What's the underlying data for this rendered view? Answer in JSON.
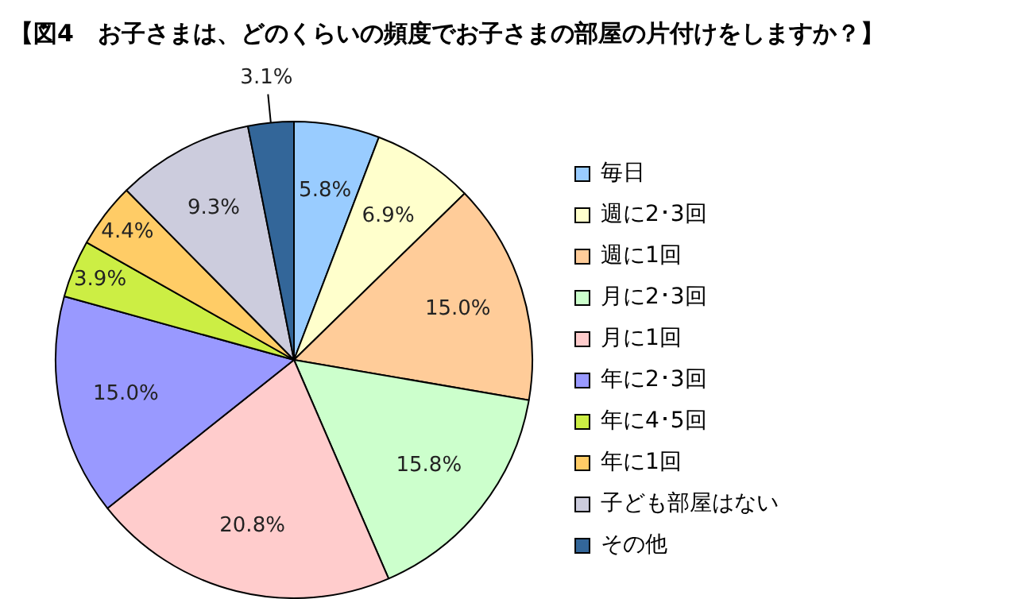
{
  "chart_data": {
    "type": "pie",
    "title": "【図4　お子さまは、どのくらいの頻度でお子さまの部屋の片付けをしますか？】",
    "categories": [
      "毎日",
      "週に2･3回",
      "週に1回",
      "月に2･3回",
      "月に1回",
      "年に2･3回",
      "年に4･5回",
      "年に1回",
      "子ども部屋はない",
      "その他"
    ],
    "values": [
      5.8,
      6.9,
      15.0,
      15.8,
      20.8,
      15.0,
      3.9,
      4.4,
      9.3,
      3.1
    ],
    "value_labels": [
      "5.8%",
      "6.9%",
      "15.0%",
      "15.8%",
      "20.8%",
      "15.0%",
      "3.9%",
      "4.4%",
      "9.3%",
      "3.1%"
    ],
    "colors": [
      "#99ccff",
      "#ffffcc",
      "#ffcc99",
      "#ccffcc",
      "#ffcccc",
      "#9999ff",
      "#ccee44",
      "#ffcc66",
      "#ccccdd",
      "#336699"
    ],
    "legend": "right"
  }
}
